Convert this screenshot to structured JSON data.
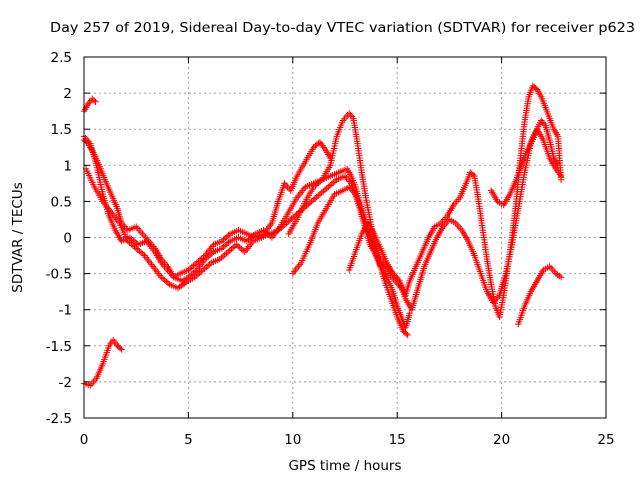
{
  "chart_data": {
    "type": "scatter",
    "title": "Day 257 of 2019, Sidereal Day-to-day VTEC variation (SDTVAR) for receiver p623",
    "xlabel": "GPS time / hours",
    "ylabel": "SDTVAR / TECUs",
    "xlim": [
      0,
      25
    ],
    "ylim": [
      -2.5,
      2.5
    ],
    "xticks": [
      0,
      5,
      10,
      15,
      20,
      25
    ],
    "xtick_labels": [
      "0",
      "5",
      "10",
      "15",
      "20",
      "25"
    ],
    "yticks": [
      -2.5,
      -2,
      -1.5,
      -1,
      -0.5,
      0,
      0.5,
      1,
      1.5,
      2,
      2.5
    ],
    "ytick_labels": [
      "-2.5",
      "-2",
      "-1.5",
      "-1",
      "-0.5",
      "0",
      "0.5",
      "1",
      "1.5",
      "2",
      "2.5"
    ],
    "grid": true,
    "marker": "+",
    "color": "#ff0000",
    "series": [
      {
        "name": "s1",
        "points": [
          [
            0.0,
            1.75
          ],
          [
            0.2,
            1.85
          ],
          [
            0.4,
            1.92
          ],
          [
            0.55,
            1.88
          ]
        ]
      },
      {
        "name": "s2",
        "points": [
          [
            0.0,
            -2.02
          ],
          [
            0.3,
            -2.05
          ],
          [
            0.6,
            -1.95
          ],
          [
            0.9,
            -1.75
          ],
          [
            1.2,
            -1.5
          ],
          [
            1.4,
            -1.42
          ],
          [
            1.6,
            -1.5
          ],
          [
            1.8,
            -1.55
          ]
        ]
      },
      {
        "name": "s3",
        "points": [
          [
            0.0,
            1.4
          ],
          [
            0.3,
            1.3
          ],
          [
            0.6,
            1.0
          ],
          [
            0.9,
            0.6
          ],
          [
            1.2,
            0.3
          ],
          [
            1.5,
            0.1
          ],
          [
            1.8,
            -0.05
          ],
          [
            2.2,
            0.0
          ],
          [
            2.6,
            -0.1
          ],
          [
            3.0,
            -0.05
          ],
          [
            3.4,
            -0.2
          ],
          [
            3.7,
            -0.35
          ],
          [
            4.0,
            -0.45
          ],
          [
            4.3,
            -0.55
          ],
          [
            4.6,
            -0.5
          ],
          [
            5.0,
            -0.45
          ],
          [
            5.4,
            -0.35
          ],
          [
            5.8,
            -0.25
          ],
          [
            6.2,
            -0.1
          ],
          [
            6.6,
            -0.05
          ],
          [
            7.0,
            0.05
          ],
          [
            7.4,
            0.1
          ],
          [
            7.8,
            0.05
          ],
          [
            8.2,
            0.0
          ],
          [
            8.6,
            0.05
          ],
          [
            9.0,
            0.2
          ],
          [
            9.3,
            0.5
          ],
          [
            9.6,
            0.75
          ],
          [
            9.9,
            0.65
          ],
          [
            10.2,
            0.85
          ],
          [
            10.6,
            1.05
          ],
          [
            11.0,
            1.25
          ],
          [
            11.3,
            1.32
          ],
          [
            11.6,
            1.2
          ],
          [
            11.8,
            1.1
          ]
        ]
      },
      {
        "name": "s4",
        "points": [
          [
            0.0,
            1.35
          ],
          [
            0.2,
            1.3
          ],
          [
            0.5,
            1.15
          ],
          [
            0.8,
            0.95
          ],
          [
            1.0,
            0.8
          ],
          [
            1.3,
            0.6
          ],
          [
            1.6,
            0.4
          ],
          [
            1.8,
            0.2
          ],
          [
            2.1,
            0.1
          ],
          [
            2.5,
            0.15
          ],
          [
            2.8,
            0.05
          ],
          [
            3.1,
            -0.05
          ],
          [
            3.4,
            -0.15
          ],
          [
            3.7,
            -0.3
          ],
          [
            4.0,
            -0.4
          ],
          [
            4.3,
            -0.55
          ],
          [
            4.7,
            -0.6
          ],
          [
            5.0,
            -0.55
          ],
          [
            5.4,
            -0.45
          ],
          [
            5.8,
            -0.3
          ],
          [
            6.2,
            -0.2
          ],
          [
            6.6,
            -0.15
          ],
          [
            7.0,
            -0.05
          ],
          [
            7.4,
            0.0
          ],
          [
            7.8,
            -0.05
          ],
          [
            8.2,
            0.05
          ],
          [
            8.6,
            0.1
          ],
          [
            9.0,
            0.0
          ],
          [
            9.4,
            0.15
          ],
          [
            9.8,
            0.35
          ],
          [
            10.2,
            0.55
          ],
          [
            10.6,
            0.7
          ],
          [
            11.0,
            0.75
          ],
          [
            11.4,
            0.8
          ],
          [
            11.8,
            0.85
          ],
          [
            12.2,
            0.9
          ],
          [
            12.6,
            0.95
          ],
          [
            12.8,
            0.85
          ],
          [
            13.0,
            0.7
          ],
          [
            13.3,
            0.4
          ],
          [
            13.6,
            0.1
          ],
          [
            13.9,
            -0.2
          ],
          [
            14.2,
            -0.4
          ],
          [
            14.5,
            -0.55
          ],
          [
            14.8,
            -0.75
          ],
          [
            15.0,
            -0.95
          ],
          [
            15.2,
            -1.1
          ],
          [
            15.4,
            -1.25
          ],
          [
            15.6,
            -1.05
          ]
        ]
      },
      {
        "name": "s5",
        "points": [
          [
            0.1,
            0.95
          ],
          [
            0.5,
            0.7
          ],
          [
            0.9,
            0.5
          ],
          [
            1.3,
            0.35
          ],
          [
            1.7,
            0.2
          ],
          [
            2.1,
            -0.05
          ],
          [
            2.5,
            -0.15
          ],
          [
            2.9,
            -0.25
          ],
          [
            3.3,
            -0.4
          ],
          [
            3.7,
            -0.55
          ],
          [
            4.1,
            -0.65
          ],
          [
            4.5,
            -0.7
          ],
          [
            4.9,
            -0.62
          ],
          [
            5.3,
            -0.55
          ],
          [
            5.7,
            -0.45
          ],
          [
            6.1,
            -0.35
          ],
          [
            6.5,
            -0.3
          ],
          [
            6.9,
            -0.2
          ],
          [
            7.3,
            -0.1
          ],
          [
            7.7,
            -0.2
          ],
          [
            8.1,
            -0.05
          ],
          [
            8.5,
            0.0
          ],
          [
            8.9,
            0.05
          ],
          [
            9.3,
            0.1
          ],
          [
            9.7,
            0.2
          ],
          [
            10.1,
            0.3
          ],
          [
            10.5,
            0.4
          ],
          [
            10.9,
            0.5
          ],
          [
            11.3,
            0.6
          ],
          [
            11.7,
            0.7
          ],
          [
            12.1,
            0.8
          ],
          [
            12.5,
            0.85
          ],
          [
            12.8,
            0.75
          ],
          [
            13.1,
            0.5
          ],
          [
            13.4,
            0.2
          ],
          [
            13.7,
            -0.1
          ],
          [
            14.0,
            -0.25
          ],
          [
            14.3,
            -0.4
          ],
          [
            14.6,
            -0.5
          ],
          [
            14.9,
            -0.6
          ],
          [
            15.2,
            -0.7
          ]
        ]
      },
      {
        "name": "s6",
        "points": [
          [
            10.0,
            -0.5
          ],
          [
            10.4,
            -0.35
          ],
          [
            10.8,
            -0.1
          ],
          [
            11.2,
            0.2
          ],
          [
            11.6,
            0.4
          ],
          [
            12.0,
            0.6
          ],
          [
            12.4,
            0.65
          ],
          [
            12.7,
            0.7
          ],
          [
            13.0,
            0.6
          ],
          [
            13.3,
            0.35
          ],
          [
            13.6,
            0.1
          ],
          [
            13.9,
            -0.1
          ],
          [
            14.2,
            -0.3
          ],
          [
            14.5,
            -0.4
          ],
          [
            14.8,
            -0.5
          ],
          [
            15.1,
            -0.6
          ],
          [
            15.4,
            -0.8
          ],
          [
            15.6,
            -0.6
          ],
          [
            15.9,
            -0.4
          ],
          [
            16.2,
            -0.2
          ],
          [
            16.5,
            0.0
          ],
          [
            16.8,
            0.15
          ],
          [
            17.1,
            0.2
          ],
          [
            17.4,
            0.3
          ],
          [
            17.7,
            0.45
          ],
          [
            18.0,
            0.55
          ],
          [
            18.3,
            0.75
          ],
          [
            18.5,
            0.9
          ],
          [
            18.7,
            0.85
          ],
          [
            18.9,
            0.5
          ],
          [
            19.1,
            0.1
          ],
          [
            19.3,
            -0.3
          ],
          [
            19.5,
            -0.65
          ],
          [
            19.7,
            -0.95
          ],
          [
            19.9,
            -1.1
          ],
          [
            20.1,
            -0.8
          ],
          [
            20.3,
            -0.4
          ],
          [
            20.5,
            0.0
          ],
          [
            20.7,
            0.5
          ],
          [
            20.9,
            1.1
          ],
          [
            21.1,
            1.6
          ],
          [
            21.3,
            1.95
          ],
          [
            21.5,
            2.1
          ],
          [
            21.7,
            2.05
          ],
          [
            21.9,
            1.95
          ],
          [
            22.1,
            1.8
          ],
          [
            22.3,
            1.65
          ],
          [
            22.5,
            1.5
          ],
          [
            22.7,
            1.4
          ],
          [
            22.85,
            0.8
          ]
        ]
      },
      {
        "name": "s7",
        "points": [
          [
            9.8,
            0.05
          ],
          [
            10.2,
            0.25
          ],
          [
            10.6,
            0.5
          ],
          [
            11.0,
            0.7
          ],
          [
            11.4,
            0.8
          ],
          [
            11.8,
            1.0
          ],
          [
            12.1,
            1.4
          ],
          [
            12.4,
            1.62
          ],
          [
            12.7,
            1.72
          ],
          [
            12.9,
            1.65
          ],
          [
            13.1,
            1.3
          ],
          [
            13.3,
            0.9
          ],
          [
            13.5,
            0.55
          ],
          [
            13.7,
            0.25
          ],
          [
            13.9,
            -0.05
          ],
          [
            14.1,
            -0.3
          ],
          [
            14.4,
            -0.6
          ],
          [
            14.7,
            -0.85
          ],
          [
            15.0,
            -1.1
          ],
          [
            15.3,
            -1.3
          ],
          [
            15.5,
            -1.35
          ]
        ]
      },
      {
        "name": "s8",
        "points": [
          [
            12.7,
            -0.45
          ],
          [
            13.0,
            -0.2
          ],
          [
            13.3,
            0.05
          ],
          [
            13.6,
            0.2
          ],
          [
            13.9,
            0.05
          ],
          [
            14.2,
            -0.15
          ],
          [
            14.5,
            -0.35
          ],
          [
            14.8,
            -0.5
          ],
          [
            15.1,
            -0.6
          ],
          [
            15.4,
            -0.85
          ],
          [
            15.7,
            -1.0
          ],
          [
            16.0,
            -0.7
          ],
          [
            16.3,
            -0.4
          ],
          [
            16.6,
            -0.2
          ],
          [
            16.9,
            0.0
          ],
          [
            17.2,
            0.15
          ],
          [
            17.5,
            0.25
          ],
          [
            17.8,
            0.2
          ],
          [
            18.1,
            0.1
          ],
          [
            18.4,
            -0.05
          ],
          [
            18.7,
            -0.25
          ],
          [
            19.0,
            -0.5
          ],
          [
            19.3,
            -0.75
          ],
          [
            19.6,
            -0.9
          ],
          [
            19.9,
            -0.8
          ],
          [
            20.2,
            -0.5
          ],
          [
            20.5,
            -0.1
          ],
          [
            20.8,
            0.4
          ],
          [
            21.1,
            0.9
          ],
          [
            21.4,
            1.3
          ],
          [
            21.7,
            1.5
          ],
          [
            22.0,
            1.35
          ],
          [
            22.3,
            1.1
          ],
          [
            22.6,
            0.95
          ],
          [
            22.85,
            0.85
          ]
        ]
      },
      {
        "name": "s9",
        "points": [
          [
            19.5,
            0.65
          ],
          [
            19.8,
            0.5
          ],
          [
            20.1,
            0.45
          ],
          [
            20.4,
            0.6
          ],
          [
            20.7,
            0.8
          ],
          [
            21.0,
            1.05
          ],
          [
            21.3,
            1.25
          ],
          [
            21.6,
            1.45
          ],
          [
            21.9,
            1.62
          ],
          [
            22.1,
            1.55
          ],
          [
            22.3,
            1.35
          ],
          [
            22.5,
            1.1
          ],
          [
            22.7,
            1.0
          ]
        ]
      },
      {
        "name": "s10",
        "points": [
          [
            20.8,
            -1.2
          ],
          [
            21.1,
            -0.95
          ],
          [
            21.4,
            -0.75
          ],
          [
            21.7,
            -0.6
          ],
          [
            22.0,
            -0.45
          ],
          [
            22.3,
            -0.4
          ],
          [
            22.6,
            -0.5
          ],
          [
            22.85,
            -0.55
          ]
        ]
      }
    ]
  }
}
